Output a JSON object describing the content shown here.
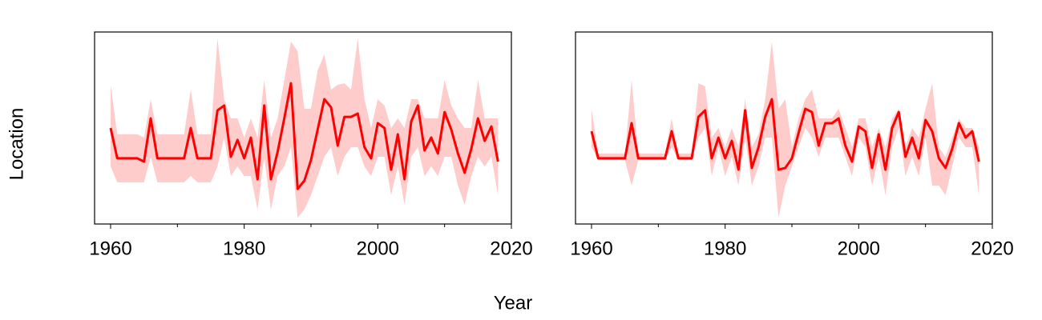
{
  "shared": {
    "xlabel": "Year",
    "ylabel": "Location"
  },
  "chart_data": [
    {
      "type": "line",
      "xlim": [
        1957.6,
        2020
      ],
      "ylim": [
        0,
        10
      ],
      "xticks": [
        1960,
        1980,
        2000,
        2020
      ],
      "xminorticks": [
        1970,
        1990,
        2010
      ],
      "x": [
        1960,
        1961,
        1962,
        1963,
        1964,
        1965,
        1966,
        1967,
        1968,
        1969,
        1970,
        1971,
        1972,
        1973,
        1974,
        1975,
        1976,
        1977,
        1978,
        1979,
        1980,
        1981,
        1982,
        1983,
        1984,
        1985,
        1986,
        1987,
        1988,
        1989,
        1990,
        1991,
        1992,
        1993,
        1994,
        1995,
        1996,
        1997,
        1998,
        1999,
        2000,
        2001,
        2002,
        2003,
        2004,
        2005,
        2006,
        2007,
        2008,
        2009,
        2010,
        2011,
        2012,
        2013,
        2014,
        2015,
        2016,
        2017,
        2018
      ],
      "series": [
        {
          "color": "#ff0000",
          "band_color": "#ffcccc",
          "values": [
            5.0,
            3.42,
            3.42,
            3.42,
            3.42,
            3.25,
            5.5,
            3.42,
            3.42,
            3.42,
            3.42,
            3.42,
            5.0,
            3.42,
            3.42,
            3.42,
            5.92,
            6.17,
            3.5,
            4.38,
            3.42,
            4.5,
            2.33,
            6.17,
            2.33,
            3.75,
            5.5,
            7.33,
            1.83,
            2.25,
            3.33,
            4.92,
            6.5,
            6.08,
            4.08,
            5.58,
            5.58,
            5.75,
            4.0,
            3.42,
            5.25,
            5.0,
            2.83,
            4.67,
            2.33,
            5.33,
            6.17,
            3.83,
            4.5,
            3.67,
            5.83,
            4.92,
            3.67,
            2.67,
            3.92,
            5.5,
            4.33,
            5.08,
            3.25
          ],
          "upper": [
            7.25,
            4.67,
            4.67,
            4.67,
            4.67,
            4.5,
            6.5,
            4.67,
            4.67,
            4.67,
            4.67,
            4.67,
            7.0,
            4.67,
            4.67,
            4.67,
            9.67,
            6.5,
            5.5,
            5.5,
            4.5,
            5.5,
            4.5,
            7.5,
            4.5,
            5.5,
            7.5,
            9.5,
            9.0,
            6.0,
            6.0,
            8.0,
            8.83,
            7.0,
            7.25,
            7.33,
            7.0,
            9.67,
            6.5,
            5.0,
            6.5,
            6.17,
            5.0,
            5.5,
            5.0,
            6.5,
            6.5,
            5.5,
            5.5,
            5.5,
            7.5,
            6.17,
            5.5,
            5.0,
            5.0,
            7.5,
            5.5,
            5.5,
            5.5
          ],
          "lower": [
            3.0,
            2.17,
            2.17,
            2.17,
            2.17,
            2.17,
            3.5,
            2.17,
            2.17,
            2.17,
            2.17,
            2.17,
            2.5,
            2.17,
            2.17,
            2.17,
            3.0,
            4.5,
            2.5,
            3.0,
            2.5,
            2.5,
            0.75,
            3.5,
            0.75,
            2.5,
            3.0,
            4.0,
            0.33,
            0.75,
            1.5,
            2.5,
            3.5,
            4.0,
            2.5,
            3.5,
            4.0,
            4.0,
            3.0,
            2.5,
            3.5,
            3.5,
            1.5,
            3.0,
            1.0,
            3.5,
            4.0,
            2.5,
            3.0,
            2.5,
            3.5,
            3.5,
            2.0,
            1.0,
            2.5,
            3.5,
            3.0,
            3.5,
            1.5
          ]
        }
      ]
    },
    {
      "type": "line",
      "xlim": [
        1957.6,
        2020
      ],
      "ylim": [
        0,
        10
      ],
      "xticks": [
        1960,
        1980,
        2000,
        2020
      ],
      "xminorticks": [
        1970,
        1990,
        2010
      ],
      "x": [
        1960,
        1961,
        1962,
        1963,
        1964,
        1965,
        1966,
        1967,
        1968,
        1969,
        1970,
        1971,
        1972,
        1973,
        1974,
        1975,
        1976,
        1977,
        1978,
        1979,
        1980,
        1981,
        1982,
        1983,
        1984,
        1985,
        1986,
        1987,
        1988,
        1989,
        1990,
        1991,
        1992,
        1993,
        1994,
        1995,
        1996,
        1997,
        1998,
        1999,
        2000,
        2001,
        2002,
        2003,
        2004,
        2005,
        2006,
        2007,
        2008,
        2009,
        2010,
        2011,
        2012,
        2013,
        2014,
        2015,
        2016,
        2017,
        2018
      ],
      "series": [
        {
          "color": "#ff0000",
          "band_color": "#ffcccc",
          "values": [
            4.83,
            3.42,
            3.42,
            3.42,
            3.42,
            3.42,
            5.25,
            3.42,
            3.42,
            3.42,
            3.42,
            3.42,
            4.83,
            3.42,
            3.42,
            3.42,
            5.58,
            5.92,
            3.42,
            4.5,
            3.42,
            4.33,
            2.83,
            5.92,
            2.92,
            4.0,
            5.58,
            6.5,
            2.83,
            2.92,
            3.42,
            4.75,
            6.0,
            5.83,
            4.08,
            5.25,
            5.25,
            5.5,
            4.08,
            3.25,
            5.08,
            4.83,
            2.92,
            4.67,
            2.83,
            5.0,
            5.83,
            3.5,
            4.5,
            3.42,
            5.42,
            4.83,
            3.42,
            2.92,
            3.92,
            5.25,
            4.5,
            4.83,
            3.25
          ],
          "upper": [
            6.0,
            3.67,
            3.67,
            3.67,
            3.67,
            3.67,
            7.5,
            3.67,
            3.67,
            3.67,
            3.67,
            3.67,
            5.5,
            3.67,
            3.67,
            3.67,
            7.33,
            7.17,
            4.5,
            5.0,
            4.0,
            5.0,
            4.0,
            6.5,
            4.0,
            4.67,
            6.5,
            9.5,
            6.0,
            6.5,
            4.0,
            5.5,
            6.5,
            7.0,
            5.5,
            5.5,
            5.5,
            6.0,
            5.0,
            4.0,
            5.5,
            5.5,
            4.0,
            5.0,
            4.0,
            5.5,
            6.0,
            4.0,
            5.0,
            4.5,
            6.0,
            7.33,
            4.0,
            3.5,
            4.5,
            5.5,
            5.0,
            5.0,
            4.0
          ],
          "lower": [
            4.0,
            3.33,
            3.33,
            3.33,
            3.33,
            3.33,
            2.0,
            3.33,
            3.33,
            3.33,
            3.33,
            3.33,
            4.0,
            3.33,
            3.33,
            3.33,
            4.5,
            5.0,
            2.5,
            4.0,
            2.5,
            3.5,
            2.0,
            4.5,
            2.0,
            3.0,
            4.5,
            4.5,
            0.33,
            2.0,
            3.0,
            4.0,
            5.0,
            4.5,
            3.5,
            4.5,
            4.5,
            4.5,
            3.5,
            2.5,
            4.5,
            4.0,
            2.0,
            3.5,
            1.5,
            4.0,
            5.0,
            2.5,
            3.5,
            2.5,
            4.5,
            2.0,
            2.0,
            1.5,
            3.0,
            4.5,
            4.0,
            4.0,
            1.5
          ]
        }
      ]
    }
  ]
}
